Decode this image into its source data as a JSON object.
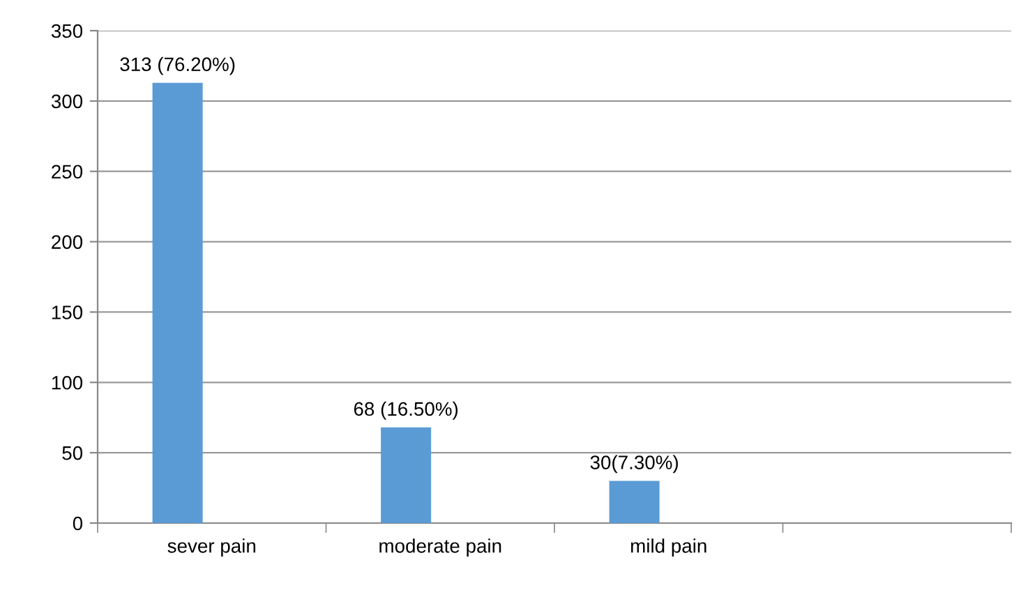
{
  "chart_data": {
    "type": "bar",
    "categories": [
      "sever pain",
      "moderate pain",
      "mild pain",
      null
    ],
    "series": [
      {
        "color": "#5b9bd5",
        "values": [
          313,
          68,
          30,
          null
        ],
        "value_labels": [
          "313 (76.20%)",
          "68 (16.50%)",
          "30(7.30%)",
          null
        ]
      }
    ],
    "ylim": [
      0,
      350
    ],
    "yticks": [
      0,
      50,
      100,
      150,
      200,
      250,
      300,
      350
    ],
    "grid": "y",
    "legend": false
  }
}
